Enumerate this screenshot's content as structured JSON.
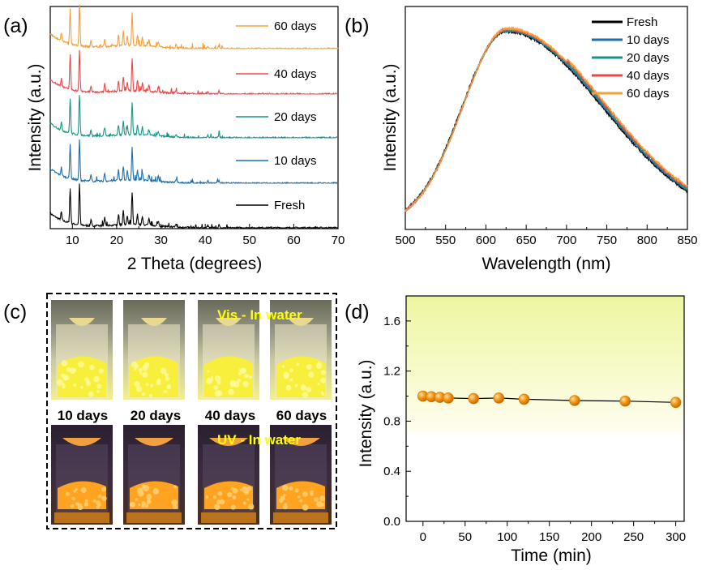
{
  "panel_labels": [
    "(a)",
    "(b)",
    "(c)",
    "(d)"
  ],
  "colors": {
    "Fresh": "#000000",
    "10 days": "#1f6fa8",
    "20 days": "#17948a",
    "40 days": "#e8474a",
    "60 days": "#f2a03d",
    "marker": "#f39a1c",
    "gradient_top": "#f2f7a6",
    "text_yellow": "#ffff00"
  },
  "chart_data": [
    {
      "type": "line",
      "panel": "(a)",
      "xlabel": "2 Theta (degrees)",
      "ylabel": "Intensity (a.u.)",
      "xlim": [
        5,
        70
      ],
      "xticks": [
        "10",
        "20",
        "30",
        "40",
        "50",
        "60",
        "70"
      ],
      "y_ticklabels": false,
      "stacked": true,
      "series": [
        {
          "name": "Fresh"
        },
        {
          "name": "10 days"
        },
        {
          "name": "20 days"
        },
        {
          "name": "40 days"
        },
        {
          "name": "60 days"
        }
      ],
      "peaks_2theta": [
        7.5,
        9.5,
        11.6,
        14.2,
        17.3,
        20.4,
        21.5,
        22.4,
        23.5,
        24.7,
        25.8,
        27.3,
        29.4,
        33.4,
        40.6,
        43.1
      ],
      "peak_rel_intensity": [
        0.2,
        0.85,
        1.0,
        0.15,
        0.2,
        0.25,
        0.35,
        0.22,
        0.8,
        0.25,
        0.2,
        0.15,
        0.12,
        0.08,
        0.06,
        0.07
      ],
      "legend": "inline-right"
    },
    {
      "type": "line",
      "panel": "(b)",
      "xlabel": "Wavelength (nm)",
      "ylabel": "Intensity (a.u.)",
      "xlim": [
        500,
        850
      ],
      "xticks": [
        "500",
        "550",
        "600",
        "650",
        "700",
        "750",
        "800",
        "850"
      ],
      "y_ticklabels": false,
      "peak_nm": 625,
      "series": [
        {
          "name": "Fresh"
        },
        {
          "name": "10 days"
        },
        {
          "name": "20 days"
        },
        {
          "name": "40 days"
        },
        {
          "name": "60 days"
        }
      ],
      "legend": "top-right"
    },
    {
      "type": "scatter",
      "panel": "(d)",
      "xlabel": "Time (min)",
      "ylabel": "Intensity (a.u.)",
      "xlim": [
        -20,
        310
      ],
      "ylim": [
        0,
        1.8
      ],
      "xticks": [
        "0",
        "50",
        "100",
        "150",
        "200",
        "250",
        "300"
      ],
      "yticks": [
        "0.0",
        "0.4",
        "0.8",
        "1.2",
        "1.6"
      ],
      "x": [
        0,
        10,
        20,
        30,
        60,
        90,
        120,
        180,
        240,
        300
      ],
      "y": [
        1.0,
        0.995,
        0.99,
        0.985,
        0.98,
        0.985,
        0.975,
        0.965,
        0.96,
        0.95
      ],
      "connected": true
    }
  ],
  "photos": {
    "vis_label": "Vis - In water",
    "uv_label": "UV - In water",
    "days": [
      "10 days",
      "20 days",
      "40 days",
      "60 days"
    ]
  }
}
